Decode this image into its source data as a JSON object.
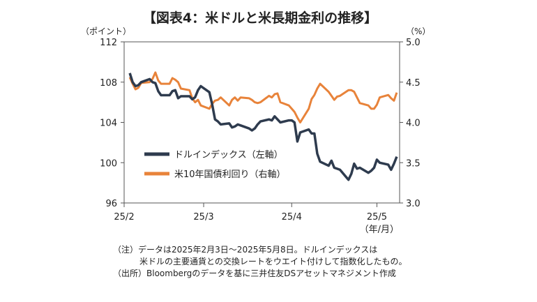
{
  "chart_data": {
    "type": "line",
    "title": "【図表4：米ドルと米長期金利の推移】",
    "y_left_unit": "（ポイント）",
    "y_right_unit": "（%）",
    "x_unit": "（年/月）",
    "y_left_range": [
      96,
      112
    ],
    "y_left_ticks": [
      "96",
      "100",
      "104",
      "108",
      "112"
    ],
    "y_right_range": [
      3.0,
      5.0
    ],
    "y_right_ticks": [
      "3.0",
      "3.5",
      "4.0",
      "4.5",
      "5.0"
    ],
    "x_range": [
      "2025-02-01",
      "2025-05-09"
    ],
    "x_ticks": [
      {
        "date": "2025-02-01",
        "label": "25/2"
      },
      {
        "date": "2025-03-01",
        "label": "25/3"
      },
      {
        "date": "2025-04-01",
        "label": "25/4"
      },
      {
        "date": "2025-05-01",
        "label": "25/5"
      }
    ],
    "grid": false,
    "legend_position": "center-left",
    "series": [
      {
        "name": "ドルインデックス（左軸）",
        "axis": "left",
        "color": "#2e3b4e",
        "points": [
          [
            "2025-02-03",
            108.9
          ],
          [
            "2025-02-04",
            108.0
          ],
          [
            "2025-02-05",
            107.6
          ],
          [
            "2025-02-06",
            107.7
          ],
          [
            "2025-02-07",
            108.0
          ],
          [
            "2025-02-10",
            108.3
          ],
          [
            "2025-02-11",
            108.0
          ],
          [
            "2025-02-12",
            107.9
          ],
          [
            "2025-02-13",
            107.1
          ],
          [
            "2025-02-14",
            106.7
          ],
          [
            "2025-02-17",
            106.7
          ],
          [
            "2025-02-18",
            107.1
          ],
          [
            "2025-02-19",
            107.2
          ],
          [
            "2025-02-20",
            106.4
          ],
          [
            "2025-02-21",
            106.6
          ],
          [
            "2025-02-24",
            106.6
          ],
          [
            "2025-02-25",
            106.3
          ],
          [
            "2025-02-26",
            106.5
          ],
          [
            "2025-02-27",
            107.2
          ],
          [
            "2025-02-28",
            107.6
          ],
          [
            "2025-03-03",
            107.0
          ],
          [
            "2025-03-04",
            105.8
          ],
          [
            "2025-03-05",
            104.3
          ],
          [
            "2025-03-06",
            104.1
          ],
          [
            "2025-03-07",
            103.8
          ],
          [
            "2025-03-10",
            103.9
          ],
          [
            "2025-03-11",
            103.5
          ],
          [
            "2025-03-12",
            103.6
          ],
          [
            "2025-03-13",
            103.8
          ],
          [
            "2025-03-14",
            103.7
          ],
          [
            "2025-03-17",
            103.4
          ],
          [
            "2025-03-18",
            103.2
          ],
          [
            "2025-03-19",
            103.4
          ],
          [
            "2025-03-20",
            103.8
          ],
          [
            "2025-03-21",
            104.1
          ],
          [
            "2025-03-24",
            104.3
          ],
          [
            "2025-03-25",
            104.2
          ],
          [
            "2025-03-26",
            104.6
          ],
          [
            "2025-03-27",
            104.3
          ],
          [
            "2025-03-28",
            104.0
          ],
          [
            "2025-03-31",
            104.2
          ],
          [
            "2025-04-01",
            104.2
          ],
          [
            "2025-04-02",
            104.0
          ],
          [
            "2025-04-03",
            102.1
          ],
          [
            "2025-04-04",
            103.0
          ],
          [
            "2025-04-07",
            103.3
          ],
          [
            "2025-04-08",
            102.9
          ],
          [
            "2025-04-09",
            102.9
          ],
          [
            "2025-04-10",
            100.9
          ],
          [
            "2025-04-11",
            100.1
          ],
          [
            "2025-04-14",
            99.7
          ],
          [
            "2025-04-15",
            100.2
          ],
          [
            "2025-04-16",
            99.5
          ],
          [
            "2025-04-17",
            99.4
          ],
          [
            "2025-04-18",
            99.3
          ],
          [
            "2025-04-21",
            98.3
          ],
          [
            "2025-04-22",
            98.9
          ],
          [
            "2025-04-23",
            99.9
          ],
          [
            "2025-04-24",
            99.4
          ],
          [
            "2025-04-25",
            99.5
          ],
          [
            "2025-04-28",
            99.0
          ],
          [
            "2025-04-29",
            99.2
          ],
          [
            "2025-04-30",
            99.5
          ],
          [
            "2025-05-01",
            100.3
          ],
          [
            "2025-05-02",
            100.0
          ],
          [
            "2025-05-05",
            99.8
          ],
          [
            "2025-05-06",
            99.3
          ],
          [
            "2025-05-07",
            99.9
          ],
          [
            "2025-05-08",
            100.6
          ]
        ]
      },
      {
        "name": "米10年国債利回り（右軸）",
        "axis": "right",
        "color": "#e8833a",
        "points": [
          [
            "2025-02-03",
            4.56
          ],
          [
            "2025-02-04",
            4.48
          ],
          [
            "2025-02-05",
            4.41
          ],
          [
            "2025-02-06",
            4.43
          ],
          [
            "2025-02-07",
            4.49
          ],
          [
            "2025-02-10",
            4.5
          ],
          [
            "2025-02-11",
            4.54
          ],
          [
            "2025-02-12",
            4.62
          ],
          [
            "2025-02-13",
            4.52
          ],
          [
            "2025-02-14",
            4.48
          ],
          [
            "2025-02-17",
            4.48
          ],
          [
            "2025-02-18",
            4.55
          ],
          [
            "2025-02-19",
            4.53
          ],
          [
            "2025-02-20",
            4.5
          ],
          [
            "2025-02-21",
            4.42
          ],
          [
            "2025-02-24",
            4.4
          ],
          [
            "2025-02-25",
            4.3
          ],
          [
            "2025-02-26",
            4.25
          ],
          [
            "2025-02-27",
            4.28
          ],
          [
            "2025-02-28",
            4.21
          ],
          [
            "2025-03-03",
            4.17
          ],
          [
            "2025-03-04",
            4.23
          ],
          [
            "2025-03-05",
            4.27
          ],
          [
            "2025-03-06",
            4.28
          ],
          [
            "2025-03-07",
            4.31
          ],
          [
            "2025-03-10",
            4.21
          ],
          [
            "2025-03-11",
            4.28
          ],
          [
            "2025-03-12",
            4.31
          ],
          [
            "2025-03-13",
            4.27
          ],
          [
            "2025-03-14",
            4.31
          ],
          [
            "2025-03-17",
            4.3
          ],
          [
            "2025-03-18",
            4.28
          ],
          [
            "2025-03-19",
            4.25
          ],
          [
            "2025-03-20",
            4.24
          ],
          [
            "2025-03-21",
            4.25
          ],
          [
            "2025-03-24",
            4.33
          ],
          [
            "2025-03-25",
            4.31
          ],
          [
            "2025-03-26",
            4.35
          ],
          [
            "2025-03-27",
            4.36
          ],
          [
            "2025-03-28",
            4.25
          ],
          [
            "2025-03-31",
            4.21
          ],
          [
            "2025-04-01",
            4.17
          ],
          [
            "2025-04-02",
            4.13
          ],
          [
            "2025-04-03",
            4.06
          ],
          [
            "2025-04-04",
            4.0
          ],
          [
            "2025-04-07",
            4.17
          ],
          [
            "2025-04-08",
            4.29
          ],
          [
            "2025-04-09",
            4.34
          ],
          [
            "2025-04-10",
            4.42
          ],
          [
            "2025-04-11",
            4.48
          ],
          [
            "2025-04-14",
            4.38
          ],
          [
            "2025-04-15",
            4.33
          ],
          [
            "2025-04-16",
            4.28
          ],
          [
            "2025-04-17",
            4.32
          ],
          [
            "2025-04-18",
            4.33
          ],
          [
            "2025-04-21",
            4.4
          ],
          [
            "2025-04-22",
            4.4
          ],
          [
            "2025-04-23",
            4.38
          ],
          [
            "2025-04-24",
            4.31
          ],
          [
            "2025-04-25",
            4.24
          ],
          [
            "2025-04-28",
            4.21
          ],
          [
            "2025-04-29",
            4.17
          ],
          [
            "2025-04-30",
            4.17
          ],
          [
            "2025-05-01",
            4.22
          ],
          [
            "2025-05-02",
            4.31
          ],
          [
            "2025-05-05",
            4.34
          ],
          [
            "2025-05-06",
            4.3
          ],
          [
            "2025-05-07",
            4.27
          ],
          [
            "2025-05-08",
            4.37
          ]
        ]
      }
    ]
  },
  "notes": [
    "（注）データは2025年2月3日～2025年5月8日。ドルインデックスは",
    "米ドルの主要通貨との交換レートをウエイト付けして指数化したもの。",
    "（出所）Bloombergのデータを基に三井住友DSアセットマネジメント作成"
  ]
}
